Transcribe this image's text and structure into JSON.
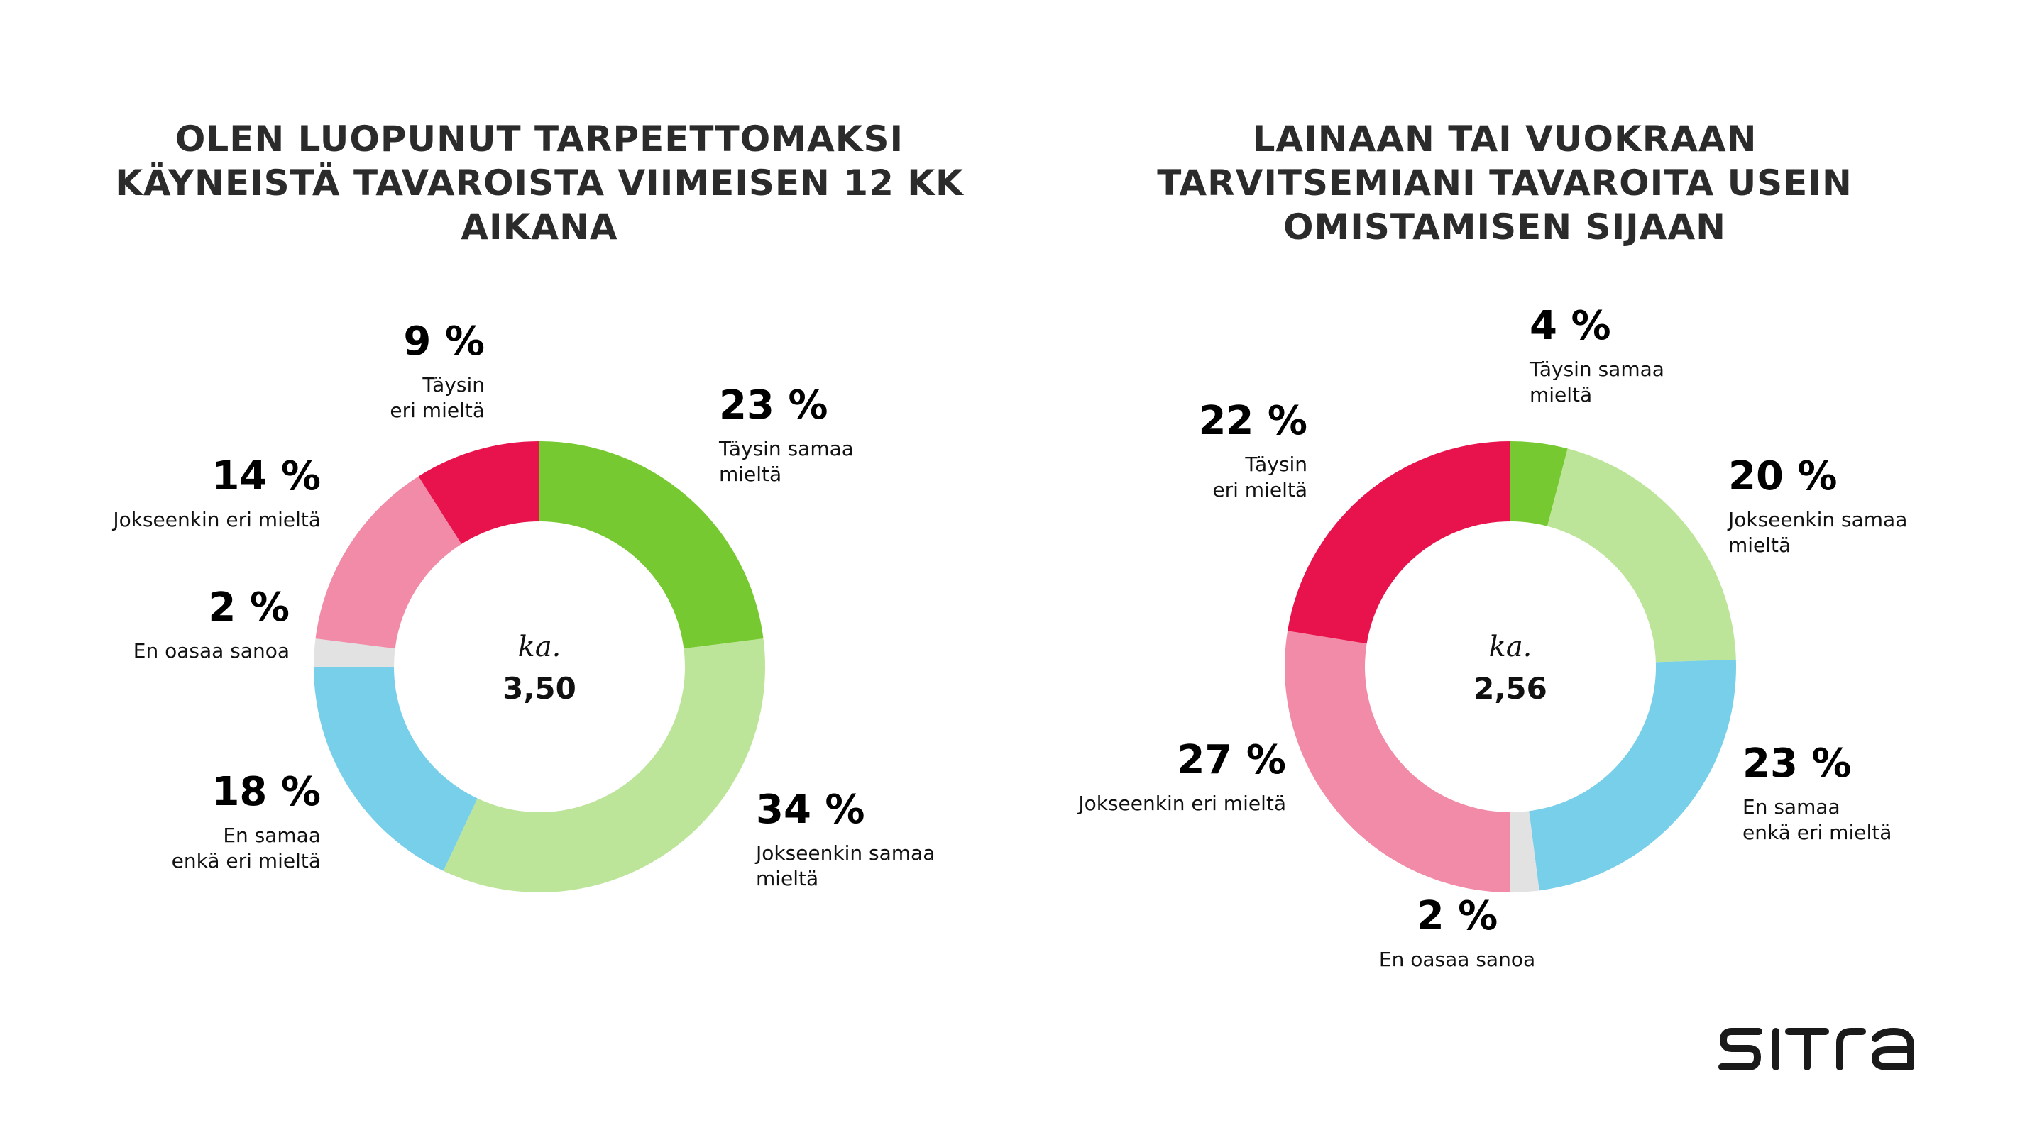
{
  "colors": {
    "taysin_samaa": "#76c930",
    "jokseenkin_samaa": "#bce599",
    "en_samaa_enka_eri": "#78cfea",
    "en_oasaa": "#e2e2e2",
    "jokseenkin_eri": "#f28ba7",
    "taysin_eri": "#e8134c"
  },
  "chart_data": [
    {
      "type": "pie",
      "title": "OLEN LUOPUNUT TARPEETTOMAKSI\nKÄYNEISTÄ TAVAROISTA VIIMEISEN 12 KK\nAIKANA",
      "center": {
        "label": "ka.",
        "value": "3,50"
      },
      "slices": [
        {
          "key": "taysin_samaa",
          "value": 23,
          "pct_label": "23 %",
          "category": [
            "Täysin samaa",
            "mieltä"
          ],
          "anchor": "start"
        },
        {
          "key": "jokseenkin_samaa",
          "value": 34,
          "pct_label": "34 %",
          "category": [
            "Jokseenkin samaa",
            "mieltä"
          ],
          "anchor": "start"
        },
        {
          "key": "en_samaa_enka_eri",
          "value": 18,
          "pct_label": "18 %",
          "category": [
            "En samaa",
            "enkä eri mieltä"
          ],
          "anchor": "end"
        },
        {
          "key": "en_oasaa",
          "value": 2,
          "pct_label": "2 %",
          "category": [
            "En oasaa sanoa"
          ],
          "anchor": "end"
        },
        {
          "key": "jokseenkin_eri",
          "value": 14,
          "pct_label": "14 %",
          "category": [
            "Jokseenkin eri mieltä"
          ],
          "anchor": "end"
        },
        {
          "key": "taysin_eri",
          "value": 9,
          "pct_label": "9 %",
          "category": [
            "Täysin",
            "eri mieltä"
          ],
          "anchor": "end"
        }
      ]
    },
    {
      "type": "pie",
      "title": "LAINAAN TAI VUOKRAAN\nTARVITSEMIANI TAVAROITA USEIN\nOMISTAMISEN SIJAAN",
      "center": {
        "label": "ka.",
        "value": "2,56"
      },
      "slices": [
        {
          "key": "taysin_samaa",
          "value": 4,
          "pct_label": "4 %",
          "category": [
            "Täysin samaa",
            "mieltä"
          ],
          "anchor": "start"
        },
        {
          "key": "jokseenkin_samaa",
          "value": 20,
          "pct_label": "20 %",
          "category": [
            "Jokseenkin samaa",
            "mieltä"
          ],
          "anchor": "start"
        },
        {
          "key": "en_samaa_enka_eri",
          "value": 23,
          "pct_label": "23 %",
          "category": [
            "En samaa",
            "enkä eri mieltä"
          ],
          "anchor": "start"
        },
        {
          "key": "en_oasaa",
          "value": 2,
          "pct_label": "2 %",
          "category": [
            "En oasaa sanoa"
          ],
          "anchor": "middle"
        },
        {
          "key": "jokseenkin_eri",
          "value": 27,
          "pct_label": "27 %",
          "category": [
            "Jokseenkin eri mieltä"
          ],
          "anchor": "end"
        },
        {
          "key": "taysin_eri",
          "value": 22,
          "pct_label": "22 %",
          "category": [
            "Täysin",
            "eri mieltä"
          ],
          "anchor": "end"
        }
      ]
    }
  ],
  "logo": {
    "text": "SITRA"
  }
}
